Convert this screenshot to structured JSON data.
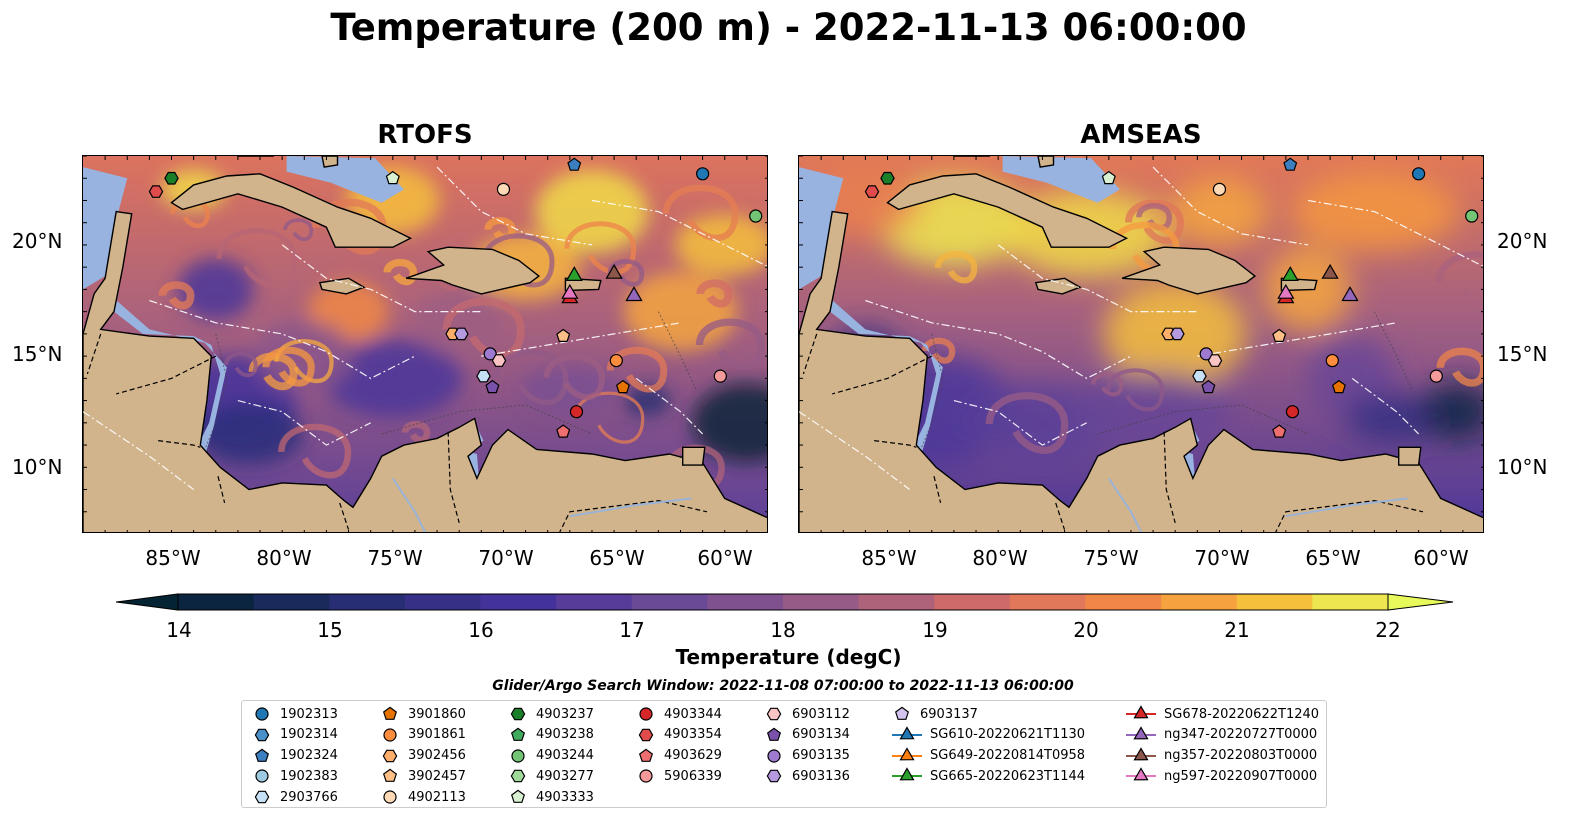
{
  "title": "Temperature (200 m) - 2022-11-13 06:00:00",
  "panels": [
    {
      "title": "RTOFS",
      "variant": "rtofs"
    },
    {
      "title": "AMSEAS",
      "variant": "amseas"
    }
  ],
  "lat_ticks": [
    "20°N",
    "15°N",
    "10°N"
  ],
  "lon_ticks": [
    "85°W",
    "80°W",
    "75°W",
    "70°W",
    "65°W",
    "60°W"
  ],
  "colorbar": {
    "label": "Temperature (degC)",
    "ticks": [
      "14",
      "15",
      "16",
      "17",
      "18",
      "19",
      "20",
      "21",
      "22"
    ],
    "min": 14,
    "max": 22,
    "colormap": "thermal",
    "extend": "both"
  },
  "search_window": "Glider/Argo Search Window: 2022-11-08 07:00:00 to 2022-11-13 06:00:00",
  "colors": {
    "land": "#d2b48c",
    "shallow_water": "#98b3e0",
    "blue": "#1f77b4",
    "orange": "#ff7f0e",
    "green": "#2ca02c",
    "red": "#d62728",
    "purple": "#9467bd",
    "brown": "#8c564b",
    "pink": "#e377c2"
  },
  "legend": [
    {
      "label": "1902313",
      "marker": "circle",
      "color": "#1f77b4"
    },
    {
      "label": "1902314",
      "marker": "hexagon",
      "color": "#4a8fc7"
    },
    {
      "label": "1902324",
      "marker": "pentagon",
      "color": "#3b7fc0"
    },
    {
      "label": "1902383",
      "marker": "circle",
      "color": "#9ecae1"
    },
    {
      "label": "2903766",
      "marker": "hexagon",
      "color": "#c6e0f5"
    },
    {
      "label": "3901860",
      "marker": "pentagon",
      "color": "#e67300"
    },
    {
      "label": "3901861",
      "marker": "circle",
      "color": "#fd8d3c"
    },
    {
      "label": "3902456",
      "marker": "hexagon",
      "color": "#fdae6b"
    },
    {
      "label": "3902457",
      "marker": "pentagon",
      "color": "#fdbf86"
    },
    {
      "label": "4902113",
      "marker": "circle",
      "color": "#fdd9b5"
    },
    {
      "label": "4903237",
      "marker": "hexagon",
      "color": "#1b7f2a"
    },
    {
      "label": "4903238",
      "marker": "pentagon",
      "color": "#41ab5d"
    },
    {
      "label": "4903244",
      "marker": "circle",
      "color": "#74c476"
    },
    {
      "label": "4903277",
      "marker": "hexagon",
      "color": "#a1d99b"
    },
    {
      "label": "4903333",
      "marker": "pentagon",
      "color": "#d9f0d3"
    },
    {
      "label": "4903344",
      "marker": "circle",
      "color": "#d62728"
    },
    {
      "label": "4903354",
      "marker": "hexagon",
      "color": "#e04b4c"
    },
    {
      "label": "4903629",
      "marker": "pentagon",
      "color": "#ef6f70"
    },
    {
      "label": "5906339",
      "marker": "circle",
      "color": "#f59a9a"
    },
    {
      "label": "6903112",
      "marker": "hexagon",
      "color": "#fbc4c4"
    },
    {
      "label": "6903134",
      "marker": "pentagon",
      "color": "#7b52ab"
    },
    {
      "label": "6903135",
      "marker": "circle",
      "color": "#9e7ad0"
    },
    {
      "label": "6903136",
      "marker": "hexagon",
      "color": "#b59ae0"
    },
    {
      "label": "6903137",
      "marker": "pentagon",
      "color": "#d5c4f0"
    },
    {
      "label": "SG610-20220621T1130",
      "marker": "triangle",
      "color": "#1f77b4"
    },
    {
      "label": "SG649-20220814T0958",
      "marker": "triangle",
      "color": "#ff7f0e"
    },
    {
      "label": "SG665-20220623T1144",
      "marker": "triangle",
      "color": "#2ca02c"
    },
    {
      "label": "SG678-20220622T1240",
      "marker": "triangle",
      "color": "#d62728"
    },
    {
      "label": "ng347-20220727T0000",
      "marker": "triangle",
      "color": "#9467bd"
    },
    {
      "label": "ng357-20220803T0000",
      "marker": "triangle",
      "color": "#8c564b"
    },
    {
      "label": "ng597-20220907T0000",
      "marker": "triangle",
      "color": "#e377c2"
    }
  ]
}
